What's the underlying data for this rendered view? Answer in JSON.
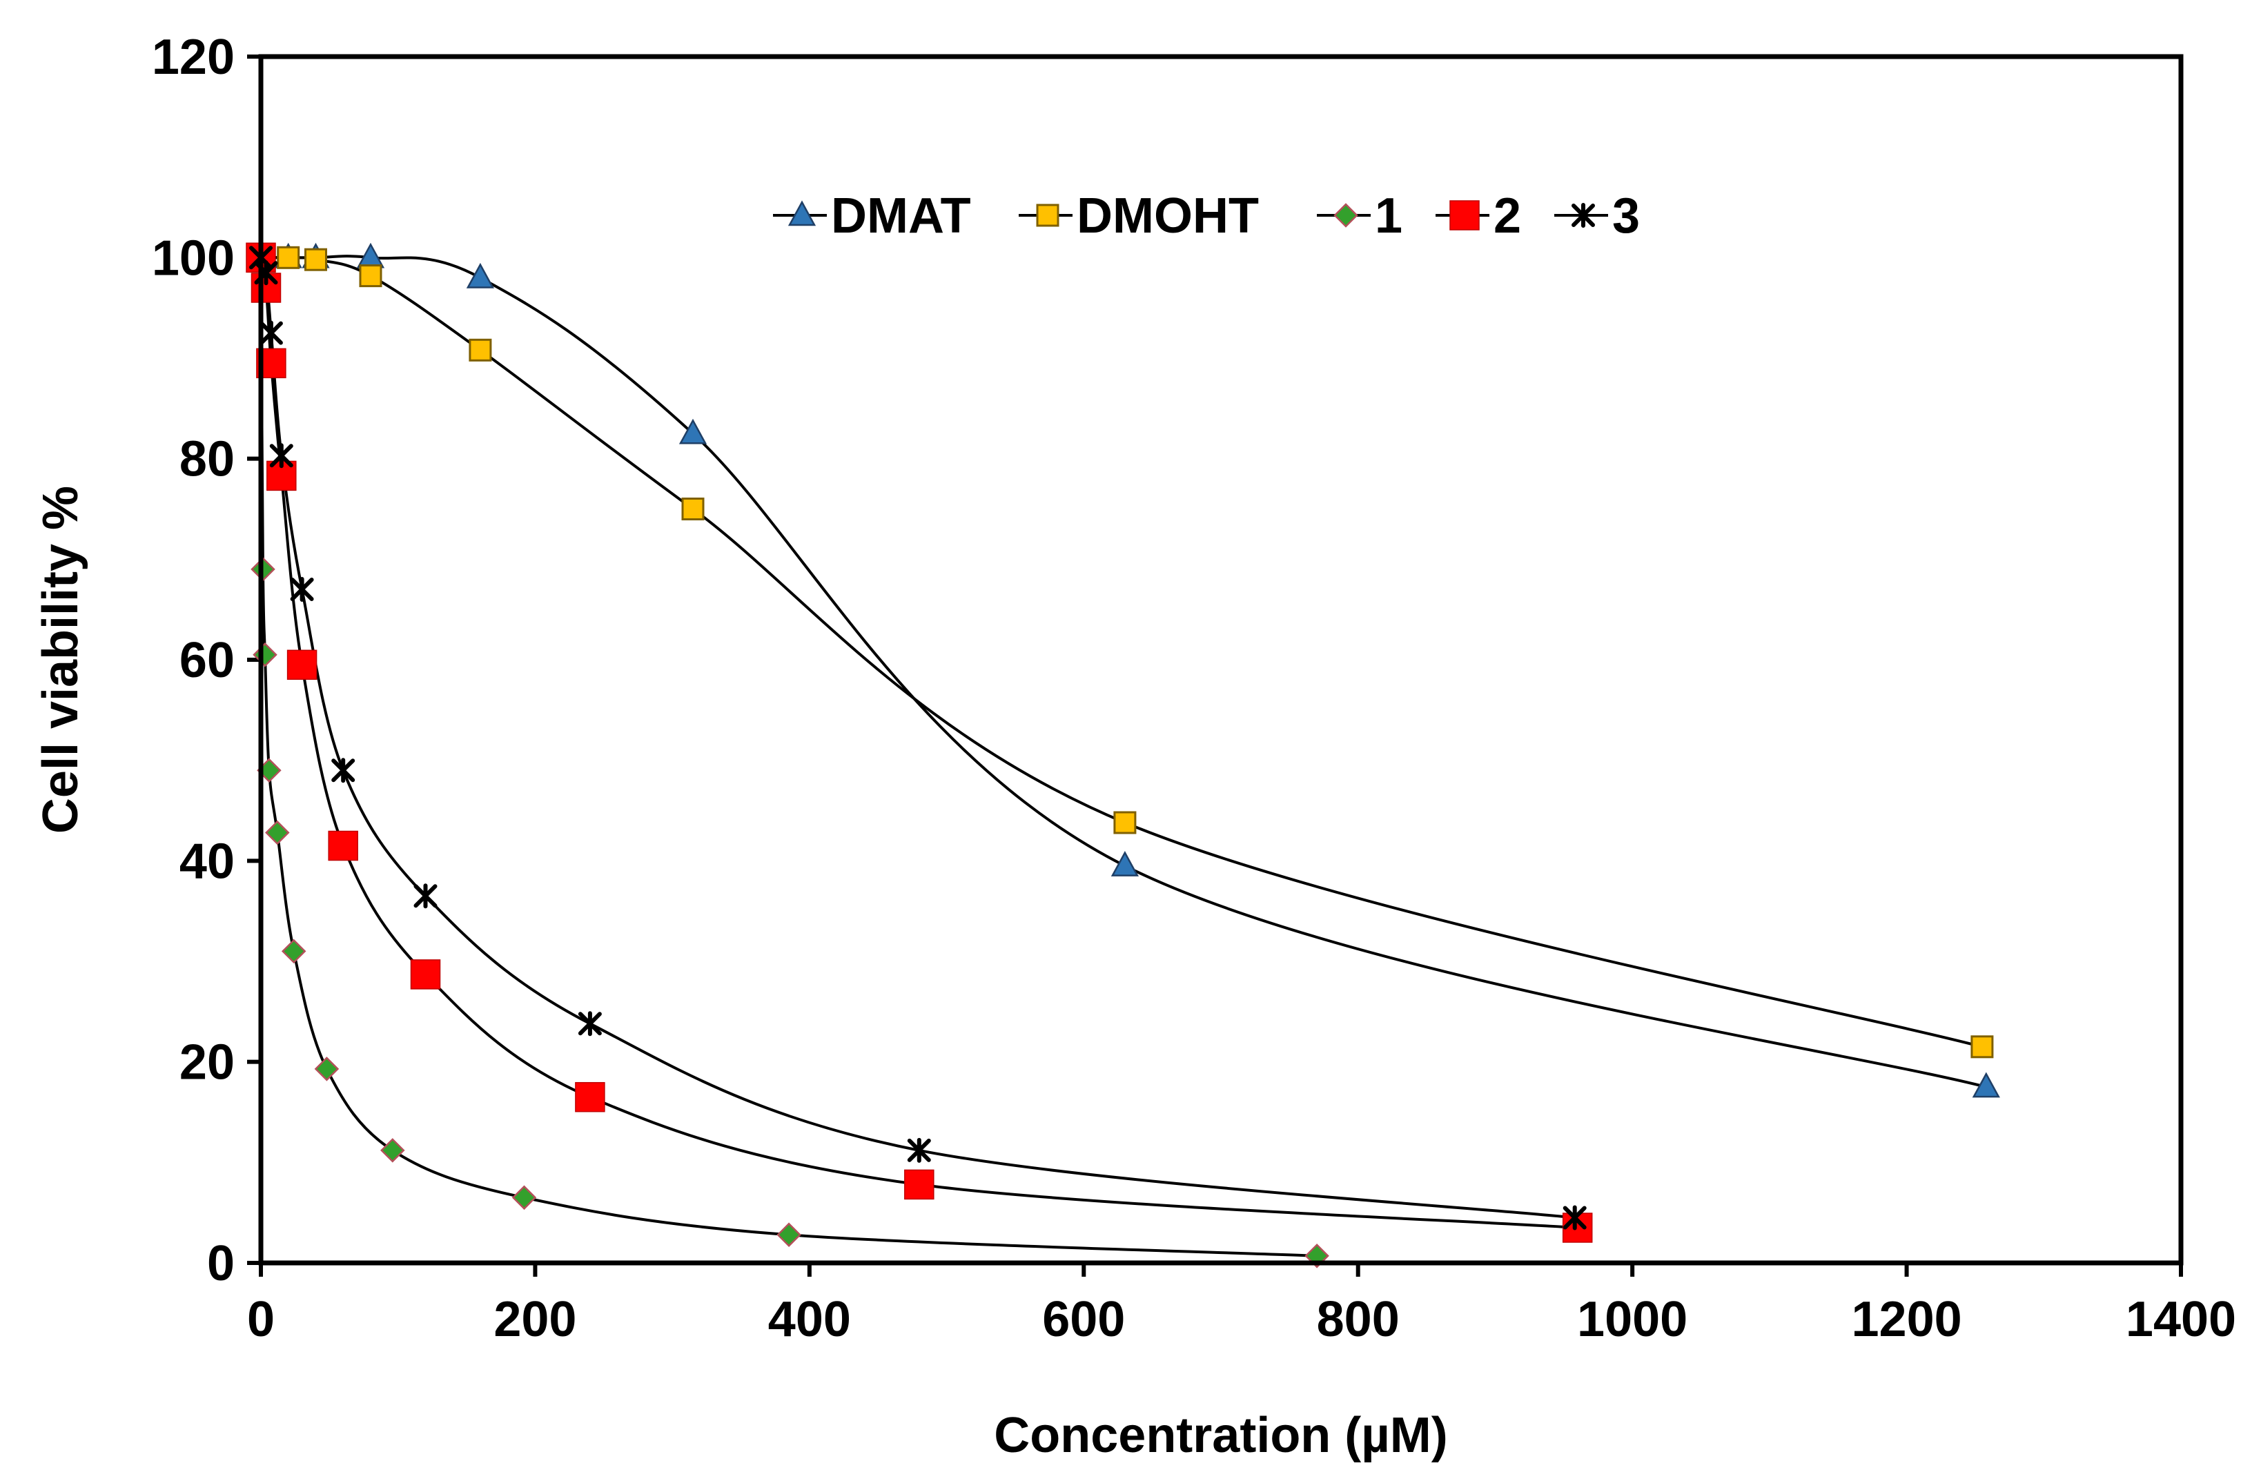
{
  "chart_data": {
    "type": "scatter",
    "title": "",
    "xlabel": "Concentration (µM)",
    "ylabel": "Cell viability %",
    "xlim": [
      0,
      1400
    ],
    "ylim": [
      0,
      120
    ],
    "x_ticks": [
      0,
      200,
      400,
      600,
      800,
      1000,
      1200,
      1400
    ],
    "y_ticks": [
      0,
      20,
      40,
      60,
      80,
      100,
      120
    ],
    "x_tick_labels": [
      "0",
      "200",
      "400",
      "600",
      "800",
      "1000",
      "1200",
      "1400"
    ],
    "y_tick_labels": [
      "0",
      "20",
      "40",
      "60",
      "80",
      "100",
      "120"
    ],
    "grid": false,
    "legend_position": "top-center",
    "series": [
      {
        "name": "DMAT",
        "marker": "triangle",
        "color": "#2E75B6",
        "x": [
          0,
          20,
          40,
          80,
          160,
          315,
          630,
          1258
        ],
        "y": [
          100,
          100,
          100,
          100,
          98,
          82.5,
          39.5,
          17.5
        ]
      },
      {
        "name": "DMOHT",
        "marker": "square-open",
        "color": "#FFC000",
        "x": [
          0,
          20,
          40,
          80,
          160,
          315,
          630,
          1255
        ],
        "y": [
          100,
          100,
          99.8,
          98.2,
          90.8,
          75,
          43.8,
          21.5
        ]
      },
      {
        "name": "1",
        "marker": "diamond",
        "color": "#33A02C",
        "x": [
          0,
          1.5,
          3,
          6,
          12,
          24,
          48,
          96,
          192,
          385,
          770
        ],
        "y": [
          100,
          69,
          60.5,
          49,
          42.8,
          31,
          19.3,
          11.2,
          6.5,
          2.8,
          0.7
        ]
      },
      {
        "name": "2",
        "marker": "square",
        "color": "#FF0000",
        "x": [
          0,
          3.75,
          7.5,
          15,
          30,
          60,
          120,
          240,
          480,
          960
        ],
        "y": [
          100,
          97,
          89.5,
          78.3,
          59.5,
          41.5,
          28.7,
          16.5,
          7.8,
          3.5
        ]
      },
      {
        "name": "3",
        "marker": "star",
        "color": "#000000",
        "x": [
          0,
          3.75,
          7.5,
          15,
          30,
          60,
          120,
          240,
          480,
          958
        ],
        "y": [
          100,
          98.5,
          92.5,
          80.3,
          67,
          49,
          36.5,
          23.8,
          11.2,
          4.5
        ]
      }
    ]
  }
}
